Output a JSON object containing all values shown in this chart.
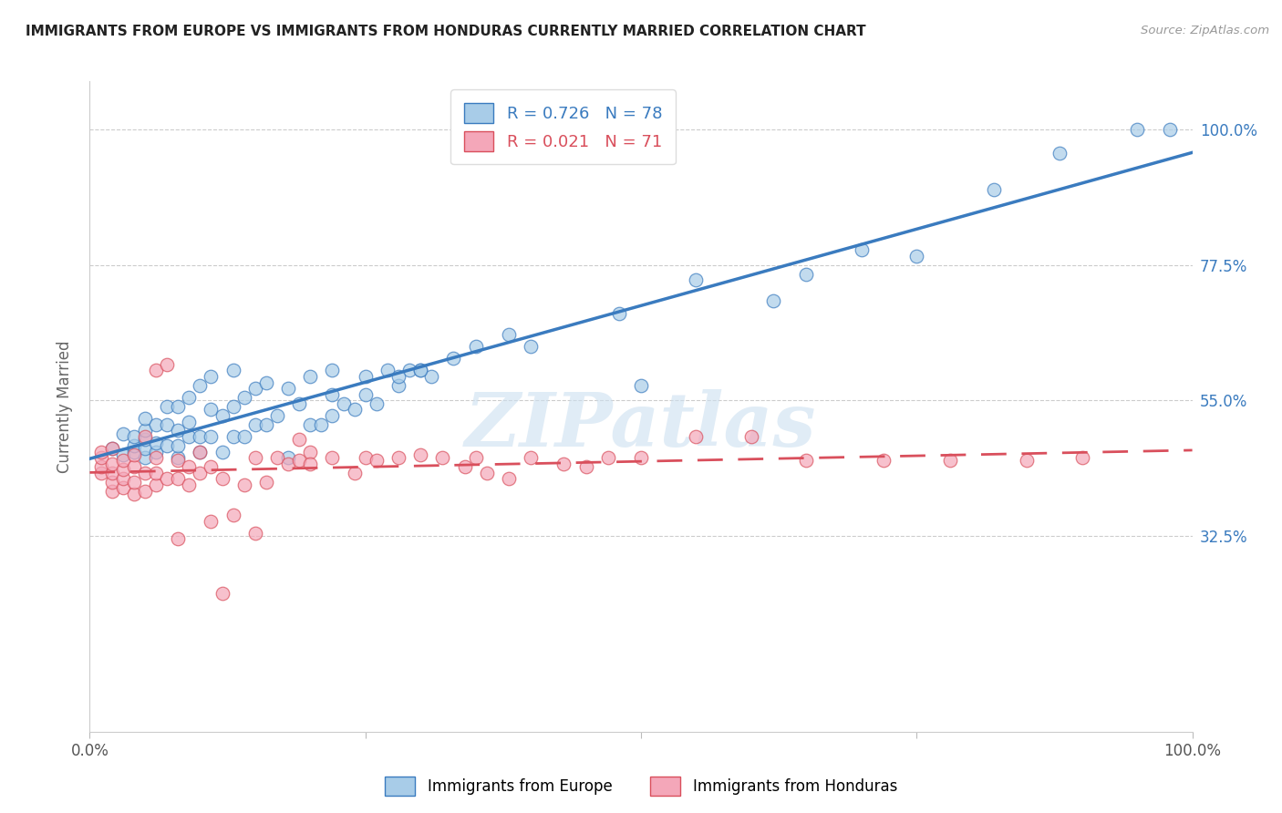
{
  "title": "IMMIGRANTS FROM EUROPE VS IMMIGRANTS FROM HONDURAS CURRENTLY MARRIED CORRELATION CHART",
  "source": "Source: ZipAtlas.com",
  "ylabel": "Currently Married",
  "blue_R": 0.726,
  "blue_N": 78,
  "pink_R": 0.021,
  "pink_N": 71,
  "legend_label_blue": "Immigrants from Europe",
  "legend_label_pink": "Immigrants from Honduras",
  "blue_color": "#a8cce8",
  "pink_color": "#f4a7b9",
  "blue_line_color": "#3a7bbf",
  "pink_line_color": "#d94f5c",
  "watermark_text": "ZIPatlas",
  "blue_x": [
    0.02,
    0.03,
    0.03,
    0.04,
    0.04,
    0.04,
    0.05,
    0.05,
    0.05,
    0.05,
    0.05,
    0.06,
    0.06,
    0.06,
    0.07,
    0.07,
    0.07,
    0.08,
    0.08,
    0.08,
    0.08,
    0.09,
    0.09,
    0.09,
    0.1,
    0.1,
    0.1,
    0.11,
    0.11,
    0.11,
    0.12,
    0.12,
    0.13,
    0.13,
    0.13,
    0.14,
    0.14,
    0.15,
    0.15,
    0.16,
    0.16,
    0.17,
    0.18,
    0.18,
    0.19,
    0.2,
    0.2,
    0.21,
    0.22,
    0.22,
    0.23,
    0.24,
    0.25,
    0.26,
    0.27,
    0.28,
    0.29,
    0.3,
    0.31,
    0.33,
    0.22,
    0.25,
    0.28,
    0.3,
    0.35,
    0.38,
    0.4,
    0.48,
    0.5,
    0.55,
    0.62,
    0.65,
    0.7,
    0.75,
    0.82,
    0.88,
    0.95,
    0.98
  ],
  "blue_y": [
    0.47,
    0.46,
    0.495,
    0.465,
    0.475,
    0.49,
    0.455,
    0.47,
    0.485,
    0.5,
    0.52,
    0.465,
    0.48,
    0.51,
    0.475,
    0.51,
    0.54,
    0.455,
    0.475,
    0.5,
    0.54,
    0.49,
    0.515,
    0.555,
    0.465,
    0.49,
    0.575,
    0.49,
    0.535,
    0.59,
    0.465,
    0.525,
    0.49,
    0.54,
    0.6,
    0.49,
    0.555,
    0.51,
    0.57,
    0.51,
    0.58,
    0.525,
    0.455,
    0.57,
    0.545,
    0.51,
    0.59,
    0.51,
    0.525,
    0.6,
    0.545,
    0.535,
    0.56,
    0.545,
    0.6,
    0.575,
    0.6,
    0.6,
    0.59,
    0.62,
    0.56,
    0.59,
    0.59,
    0.6,
    0.64,
    0.66,
    0.64,
    0.695,
    0.575,
    0.75,
    0.715,
    0.76,
    0.8,
    0.79,
    0.9,
    0.96,
    1.0,
    1.0
  ],
  "pink_x": [
    0.01,
    0.01,
    0.01,
    0.01,
    0.02,
    0.02,
    0.02,
    0.02,
    0.02,
    0.03,
    0.03,
    0.03,
    0.03,
    0.04,
    0.04,
    0.04,
    0.04,
    0.05,
    0.05,
    0.05,
    0.06,
    0.06,
    0.06,
    0.06,
    0.07,
    0.07,
    0.08,
    0.08,
    0.08,
    0.09,
    0.09,
    0.1,
    0.1,
    0.11,
    0.11,
    0.12,
    0.12,
    0.13,
    0.14,
    0.15,
    0.15,
    0.16,
    0.17,
    0.18,
    0.19,
    0.19,
    0.2,
    0.2,
    0.22,
    0.24,
    0.25,
    0.26,
    0.28,
    0.3,
    0.32,
    0.34,
    0.35,
    0.36,
    0.38,
    0.4,
    0.43,
    0.45,
    0.47,
    0.5,
    0.55,
    0.6,
    0.65,
    0.72,
    0.78,
    0.85,
    0.9
  ],
  "pink_y": [
    0.43,
    0.44,
    0.455,
    0.465,
    0.4,
    0.415,
    0.43,
    0.445,
    0.47,
    0.405,
    0.42,
    0.435,
    0.45,
    0.395,
    0.415,
    0.44,
    0.46,
    0.4,
    0.43,
    0.49,
    0.41,
    0.43,
    0.455,
    0.6,
    0.42,
    0.61,
    0.42,
    0.45,
    0.32,
    0.41,
    0.44,
    0.43,
    0.465,
    0.35,
    0.44,
    0.23,
    0.42,
    0.36,
    0.41,
    0.33,
    0.455,
    0.415,
    0.455,
    0.445,
    0.45,
    0.485,
    0.465,
    0.445,
    0.455,
    0.43,
    0.455,
    0.45,
    0.455,
    0.46,
    0.455,
    0.44,
    0.455,
    0.43,
    0.42,
    0.455,
    0.445,
    0.44,
    0.455,
    0.455,
    0.49,
    0.49,
    0.45,
    0.45,
    0.45,
    0.45,
    0.455
  ],
  "xlim": [
    0.0,
    1.0
  ],
  "ylim": [
    0.0,
    1.08
  ],
  "ytick_positions": [
    0.325,
    0.55,
    0.775,
    1.0
  ],
  "ytick_labels": [
    "32.5%",
    "55.0%",
    "77.5%",
    "100.0%"
  ],
  "xtick_positions": [
    0.0,
    0.25,
    0.5,
    0.75,
    1.0
  ],
  "xtick_labels": [
    "0.0%",
    "",
    "",
    "",
    "100.0%"
  ]
}
